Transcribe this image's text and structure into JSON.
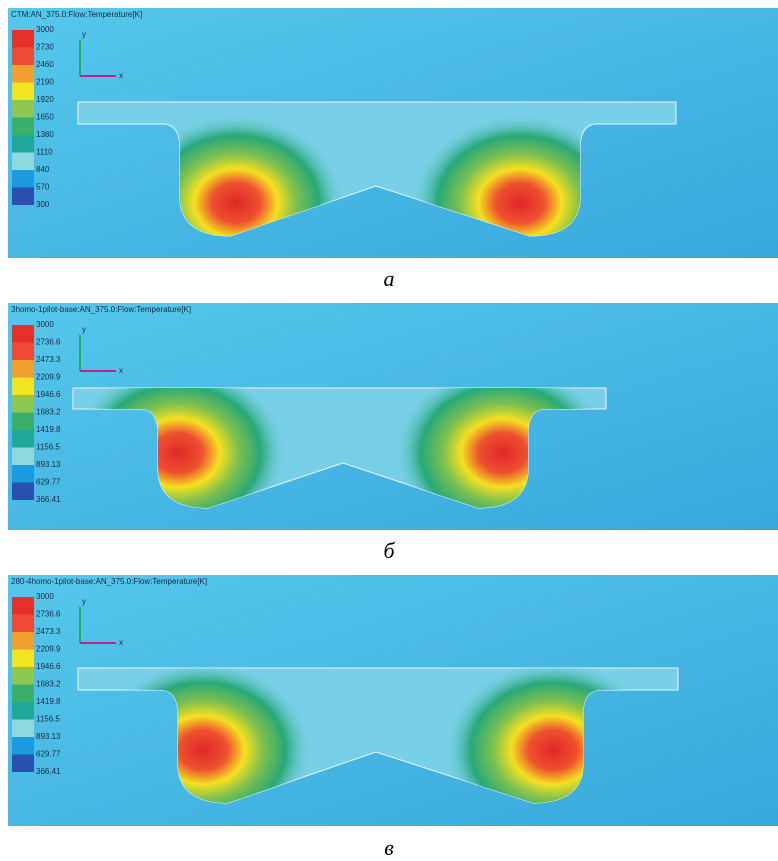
{
  "panels": [
    {
      "title": "CTM:AN_375.0:Flow:Temperature[K]",
      "legend": [
        "3000",
        "2730",
        "2460",
        "2190",
        "1920",
        "1650",
        "1380",
        "1110",
        "840",
        "570",
        "300"
      ],
      "axis_y": "y",
      "axis_x": "x",
      "caption": "а"
    },
    {
      "title": "3homo-1pilot-base:AN_375.0:Flow:Temperature[K]",
      "legend": [
        "3000",
        "2736.6",
        "2473.3",
        "2209.9",
        "1946.6",
        "1683.2",
        "1419.8",
        "1156.5",
        "893.13",
        "629.77",
        "366.41"
      ],
      "axis_y": "y",
      "axis_x": "x",
      "caption": "б"
    },
    {
      "title": "280-4homo-1pilot-base:AN_375.0:Flow:Temperature[K]",
      "legend": [
        "3000",
        "2736.6",
        "2473.3",
        "2209.9",
        "1946.6",
        "1683.2",
        "1419.8",
        "1156.5",
        "893.13",
        "629.77",
        "366.41"
      ],
      "axis_y": "y",
      "axis_x": "x",
      "caption": "в"
    }
  ]
}
